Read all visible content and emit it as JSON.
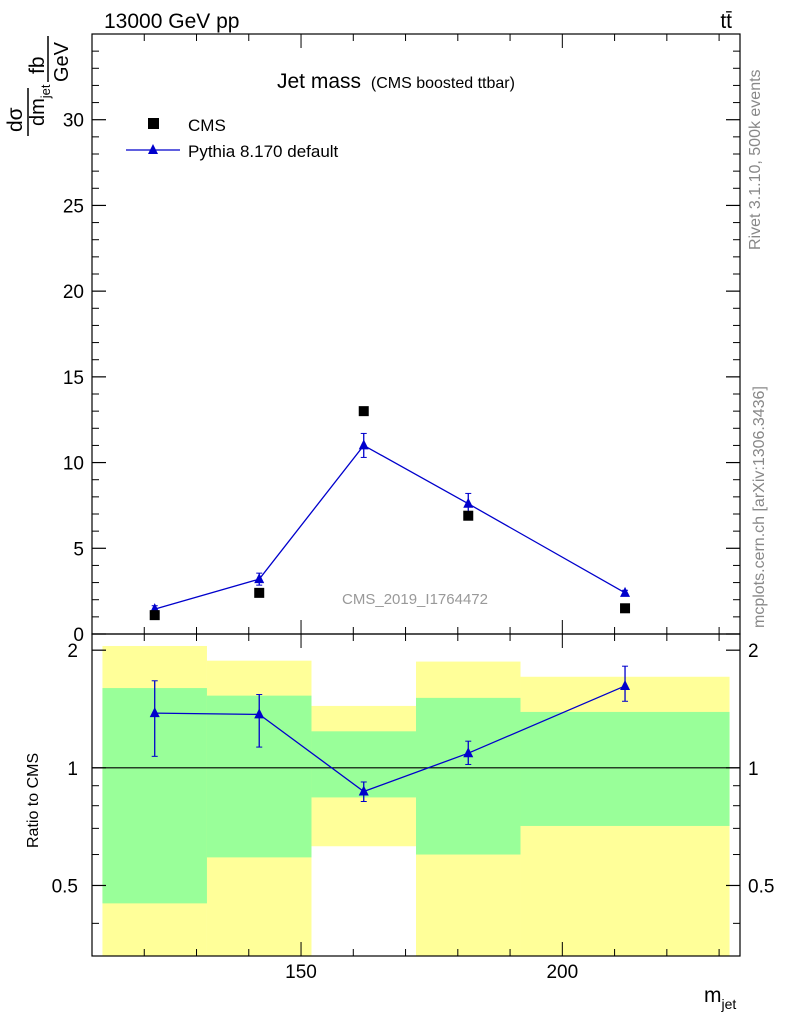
{
  "header": {
    "energy_label": "13000 GeV pp",
    "process_label": "tt̄"
  },
  "side_labels": {
    "rivet": "Rivet 3.1.10,  500k events",
    "mcplots": "mcplots.cern.ch [arXiv:1306.3436]"
  },
  "main_plot": {
    "title_main": "Jet mass",
    "title_sub": "(CMS boosted ttbar)",
    "watermark": "CMS_2019_I1764472",
    "ylabel_num_left": "dσ",
    "ylabel_den_left": "dm",
    "ylabel_den_sub": "jet",
    "ylabel_num_right": "fb",
    "ylabel_den_right": "GeV",
    "ylim": [
      0,
      35
    ],
    "yticks": [
      0,
      5,
      10,
      15,
      20,
      25,
      30
    ],
    "ytick_labels": [
      "0",
      "5",
      "10",
      "15",
      "20",
      "25",
      "30"
    ],
    "legend": [
      "CMS",
      "Pythia 8.170 default"
    ]
  },
  "ratio_plot": {
    "ylabel": "Ratio to CMS",
    "ylim": [
      0.33,
      2.2
    ],
    "ytick_labels": [
      "0.5",
      "1",
      "2"
    ],
    "yticks": [
      0.5,
      1,
      2
    ]
  },
  "x_axis": {
    "label_main": "m",
    "label_sub": "jet",
    "xlim": [
      110,
      234
    ],
    "xtick_labels": [
      "150",
      "200"
    ],
    "xticks": [
      150,
      200
    ]
  },
  "chart_data": {
    "type": "scatter",
    "x_bins": [
      [
        112,
        132
      ],
      [
        132,
        152
      ],
      [
        152,
        172
      ],
      [
        172,
        192
      ],
      [
        192,
        232
      ]
    ],
    "series": [
      {
        "name": "CMS",
        "x": [
          122,
          142,
          162,
          182,
          212
        ],
        "y": [
          1.1,
          2.4,
          13.0,
          6.9,
          1.5
        ]
      },
      {
        "name": "Pythia 8.170 default",
        "x": [
          122,
          142,
          162,
          182,
          212
        ],
        "y": [
          1.45,
          3.2,
          11.0,
          7.6,
          2.4
        ],
        "yerr": [
          0.2,
          0.35,
          0.7,
          0.6,
          0.15
        ]
      }
    ],
    "ratio": {
      "x": [
        122,
        142,
        162,
        182,
        212
      ],
      "y": [
        1.38,
        1.37,
        0.87,
        1.09,
        1.62
      ],
      "err_lo": [
        1.07,
        1.13,
        0.82,
        1.02,
        1.48
      ],
      "err_hi": [
        1.67,
        1.54,
        0.92,
        1.17,
        1.82
      ],
      "band_inner_lo": [
        0.45,
        0.59,
        0.84,
        0.6,
        0.71
      ],
      "band_inner_hi": [
        1.6,
        1.53,
        1.24,
        1.51,
        1.39
      ],
      "band_outer_lo": [
        0.33,
        0.33,
        0.63,
        0.33,
        0.33
      ],
      "band_outer_hi": [
        2.05,
        1.88,
        1.44,
        1.87,
        1.71
      ]
    },
    "colors": {
      "data": "#000000",
      "mc": "#0000cc",
      "band_inner": "#99ff99",
      "band_outer": "#ffff99"
    }
  }
}
